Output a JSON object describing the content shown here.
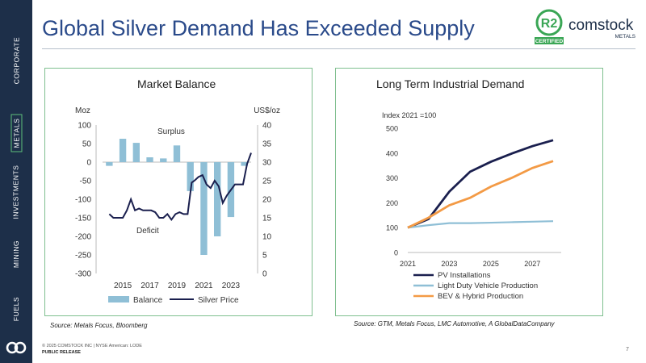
{
  "sidebar": {
    "items": [
      {
        "label": "CORPORATE",
        "active": false
      },
      {
        "label": "METALS",
        "active": true
      },
      {
        "label": "INVESTMENTS",
        "active": false
      },
      {
        "label": "MINING",
        "active": false
      },
      {
        "label": "FUELS",
        "active": false
      }
    ]
  },
  "title": "Global Silver Demand Has Exceeded Supply",
  "brand": {
    "badge": "R2",
    "badge_sub": "CERTIFIED",
    "name": "comstock",
    "sub": "METALS",
    "green": "#3aa655"
  },
  "colors": {
    "navy": "#1d2f49",
    "balance": "#8fbfd6",
    "price": "#1a1f4e",
    "pv": "#1a1f4e",
    "ldv": "#8fbfd6",
    "bev": "#f39a45"
  },
  "left_chart": {
    "source": "Source: Metals Focus, Bloomberg"
  },
  "right_chart": {
    "source": "Source: GTM, Metals Focus, LMC Automotive, A GlobalDataCompany"
  },
  "footer": {
    "copyright": "© 2025 COMSTOCK INC | NYSE American: LODE",
    "release": "PUBLIC RELEASE",
    "page": "7"
  },
  "chart_data": [
    {
      "type": "bar",
      "title": "Market Balance",
      "ylabel": "Moz",
      "y2label": "US$/oz",
      "ylim": [
        -300,
        100
      ],
      "y2lim": [
        0,
        40
      ],
      "yticks": [
        100,
        50,
        0,
        -50,
        -100,
        -150,
        -200,
        -250,
        -300
      ],
      "y2ticks": [
        40,
        35,
        30,
        25,
        20,
        15,
        10,
        5,
        0
      ],
      "xticks": [
        "2015",
        "2017",
        "2019",
        "2021",
        "2023"
      ],
      "annotations": [
        "Surplus",
        "Deficit"
      ],
      "legend": [
        "Balance",
        "Silver Price"
      ],
      "categories": [
        "2014",
        "2015",
        "2016",
        "2017",
        "2018",
        "2019",
        "2020",
        "2021",
        "2022",
        "2023",
        "2024"
      ],
      "series": [
        {
          "name": "Balance",
          "values": [
            -10,
            63,
            52,
            13,
            10,
            45,
            -78,
            -250,
            -200,
            -148,
            -10
          ]
        }
      ],
      "price_series": {
        "name": "Silver Price",
        "x": [
          2014,
          2014.3,
          2014.6,
          2015,
          2015.3,
          2015.6,
          2015.9,
          2016.2,
          2016.5,
          2016.8,
          2017.1,
          2017.4,
          2017.7,
          2018,
          2018.3,
          2018.6,
          2018.9,
          2019.2,
          2019.5,
          2019.8,
          2020.1,
          2020.3,
          2020.6,
          2020.9,
          2021.2,
          2021.5,
          2021.8,
          2022.1,
          2022.4,
          2022.7,
          2023,
          2023.3,
          2023.6,
          2023.9,
          2024.2,
          2024.5
        ],
        "y": [
          16,
          15,
          15,
          15,
          17,
          20,
          17,
          17.5,
          17,
          17,
          17,
          16.5,
          15,
          15,
          16,
          14.5,
          16,
          16.5,
          16,
          16,
          24.5,
          25,
          26,
          26.5,
          24,
          23,
          25,
          23.5,
          19,
          21,
          22.5,
          24,
          24,
          24,
          29.5,
          32.5
        ]
      }
    },
    {
      "type": "line",
      "title": "Long Term Industrial Demand",
      "ylabel": "Index 2021 =100",
      "ylim": [
        0,
        500
      ],
      "yticks": [
        500,
        400,
        300,
        200,
        100,
        0
      ],
      "xticks": [
        "2021",
        "2023",
        "2025",
        "2027"
      ],
      "x": [
        2021,
        2022,
        2023,
        2024,
        2025,
        2026,
        2027,
        2028
      ],
      "series": [
        {
          "name": "PV Installations",
          "values": [
            100,
            135,
            245,
            325,
            365,
            398,
            428,
            452
          ]
        },
        {
          "name": "Light Duty Vehicle Production",
          "values": [
            100,
            110,
            118,
            118,
            120,
            122,
            124,
            126
          ]
        },
        {
          "name": "BEV & Hybrid Production",
          "values": [
            100,
            140,
            190,
            220,
            265,
            300,
            340,
            368
          ]
        }
      ]
    }
  ]
}
